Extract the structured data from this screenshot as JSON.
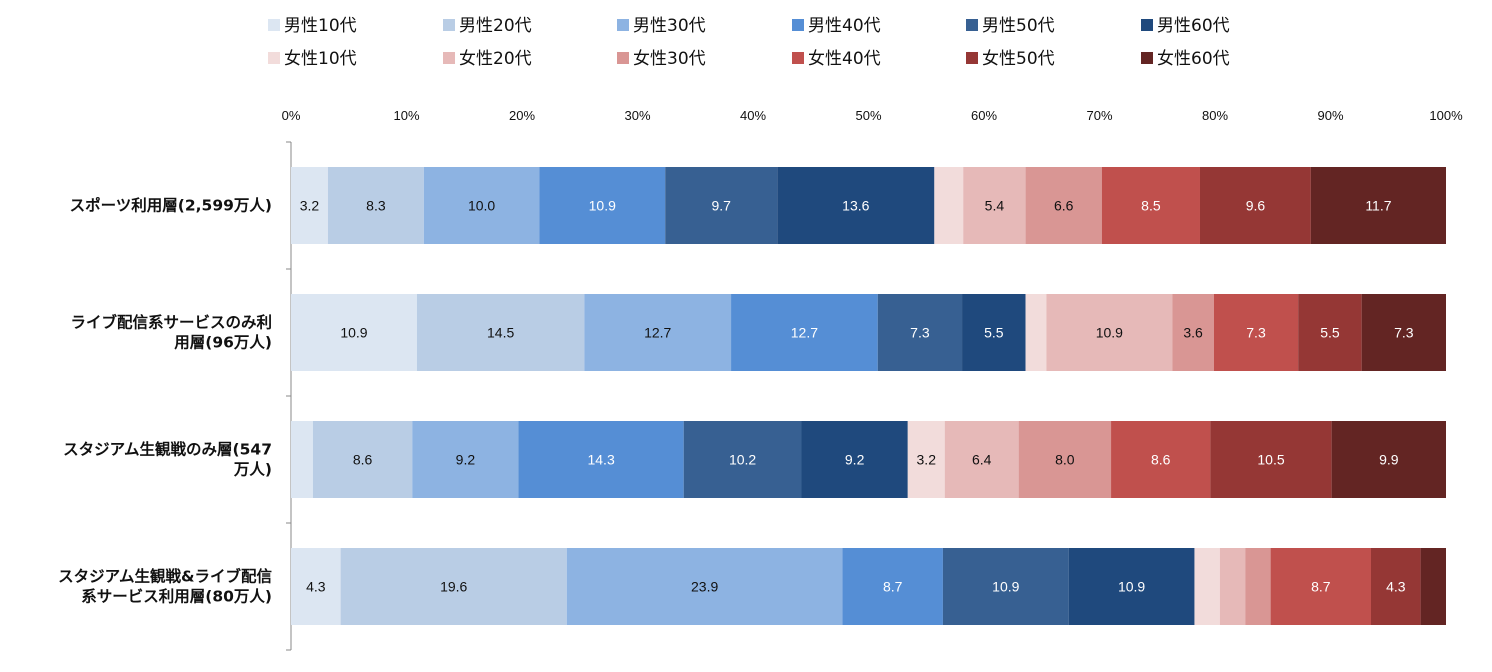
{
  "chart_data": {
    "type": "bar",
    "orientation": "horizontal",
    "stacked": "percent",
    "title": "",
    "xlabel": "",
    "ylabel": "",
    "xlim": [
      0,
      100
    ],
    "x_ticks": [
      "0%",
      "10%",
      "20%",
      "30%",
      "40%",
      "50%",
      "60%",
      "70%",
      "80%",
      "90%",
      "100%"
    ],
    "grid": false,
    "legend_position": "top",
    "categories": [
      "スポーツ利用層(2,599万人)",
      "ライブ配信系サービスのみ利用層(96万人)",
      "スタジアム生観戦のみ層(547万人)",
      "スタジアム生観戦&ライブ配信系サービス利用層(80万人)"
    ],
    "category_lines": [
      [
        "スポーツ利用層(2,599万人)"
      ],
      [
        "ライブ配信系サービスのみ利",
        "用層(96万人)"
      ],
      [
        "スタジアム生観戦のみ層(547",
        "万人)"
      ],
      [
        "スタジアム生観戦&ライブ配信",
        "系サービス利用層(80万人)"
      ]
    ],
    "series": [
      {
        "name": "男性10代",
        "color": "#dce6f2",
        "values": [
          3.2,
          10.9,
          1.9,
          4.3
        ],
        "labels": [
          "3.2",
          "10.9",
          "",
          "4.3"
        ]
      },
      {
        "name": "男性20代",
        "color": "#b9cde5",
        "values": [
          8.3,
          14.5,
          8.6,
          19.6
        ],
        "labels": [
          "8.3",
          "14.5",
          "8.6",
          "19.6"
        ]
      },
      {
        "name": "男性30代",
        "color": "#8db3e2",
        "values": [
          10.0,
          12.7,
          9.2,
          23.9
        ],
        "labels": [
          "10.0",
          "12.7",
          "9.2",
          "23.9"
        ]
      },
      {
        "name": "男性40代",
        "color": "#558ed5",
        "values": [
          10.9,
          12.7,
          14.3,
          8.7
        ],
        "labels": [
          "10.9",
          "12.7",
          "14.3",
          "8.7"
        ]
      },
      {
        "name": "男性50代",
        "color": "#376092",
        "values": [
          9.7,
          7.3,
          10.2,
          10.9
        ],
        "labels": [
          "9.7",
          "7.3",
          "10.2",
          "10.9"
        ]
      },
      {
        "name": "男性60代",
        "color": "#1f497d",
        "values": [
          13.6,
          5.5,
          9.2,
          10.9
        ],
        "labels": [
          "13.6",
          "5.5",
          "9.2",
          "10.9"
        ]
      },
      {
        "name": "女性10代",
        "color": "#f2dcdb",
        "values": [
          2.5,
          1.8,
          3.2,
          2.2
        ],
        "labels": [
          "",
          "",
          "3.2",
          ""
        ]
      },
      {
        "name": "女性20代",
        "color": "#e6b9b8",
        "values": [
          5.4,
          10.9,
          6.4,
          2.2
        ],
        "labels": [
          "5.4",
          "10.9",
          "6.4",
          ""
        ]
      },
      {
        "name": "女性30代",
        "color": "#d99694",
        "values": [
          6.6,
          3.6,
          8.0,
          2.2
        ],
        "labels": [
          "6.6",
          "3.6",
          "8.0",
          ""
        ]
      },
      {
        "name": "女性40代",
        "color": "#c0504d",
        "values": [
          8.5,
          7.3,
          8.6,
          8.7
        ],
        "labels": [
          "8.5",
          "7.3",
          "8.6",
          "8.7"
        ]
      },
      {
        "name": "女性50代",
        "color": "#953735",
        "values": [
          9.6,
          5.5,
          10.5,
          4.3
        ],
        "labels": [
          "9.6",
          "5.5",
          "10.5",
          "4.3"
        ]
      },
      {
        "name": "女性60代",
        "color": "#632523",
        "values": [
          11.7,
          7.3,
          9.9,
          2.2
        ],
        "labels": [
          "11.7",
          "7.3",
          "9.9",
          ""
        ]
      }
    ]
  }
}
